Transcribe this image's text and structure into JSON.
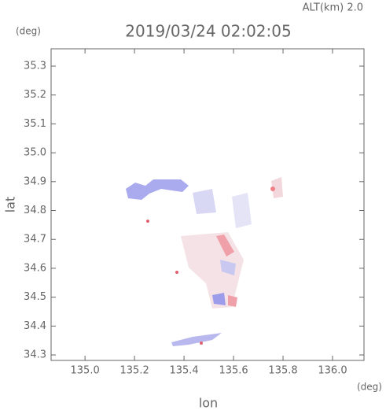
{
  "chart_data": {
    "type": "map",
    "title": "2019/03/24 02:02:05",
    "subtitle": "ALT(km) 2.0",
    "x_label": "lon",
    "x_unit": "(deg)",
    "y_label": "lat",
    "y_unit": "(deg)",
    "xlim": [
      134.863,
      136.127
    ],
    "ylim": [
      34.281,
      35.36
    ],
    "xticks": [
      {
        "value": 135.0,
        "label": "135.0"
      },
      135.2,
      135.4,
      135.6,
      135.8,
      {
        "value": 136.0,
        "label": "136.0"
      }
    ],
    "yticks": [
      35.3,
      35.2,
      35.1,
      {
        "value": 35.0,
        "label": "35.0"
      },
      34.9,
      34.8,
      34.7,
      34.6,
      34.5,
      34.4,
      34.3
    ]
  }
}
